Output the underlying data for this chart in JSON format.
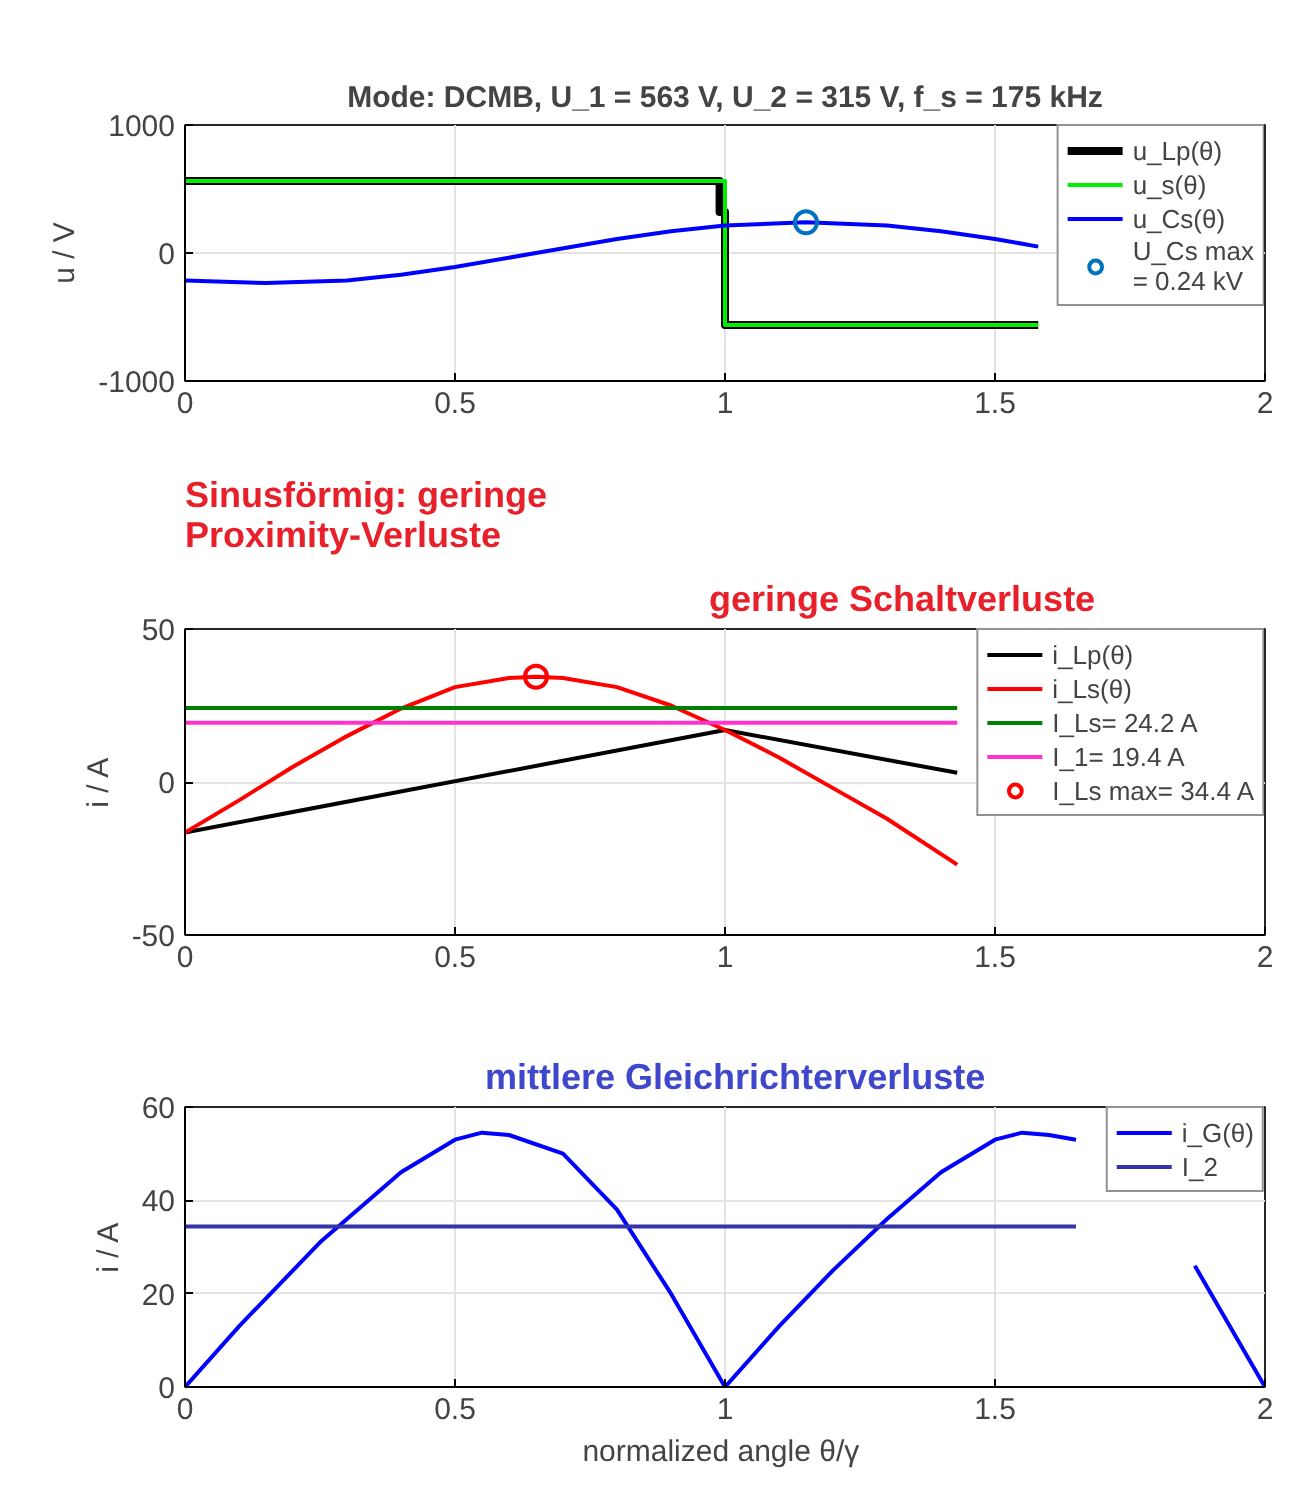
{
  "chart_data": [
    {
      "type": "line",
      "title": "Mode: DCMB, U_1 = 563 V, U_2 = 315 V, f_s = 175 kHz",
      "ylabel": "u / V",
      "xlim": [
        0,
        2
      ],
      "xticks": [
        0,
        0.5,
        1,
        1.5,
        2
      ],
      "ylim": [
        -1000,
        1000
      ],
      "yticks": [
        -1000,
        0,
        1000
      ],
      "grid": true,
      "legend": "top right",
      "series": [
        {
          "name": "u_Lp(θ)",
          "color": "#000000",
          "x": [
            0,
            0.99,
            0.99,
            1.0,
            1.0,
            1.58
          ],
          "values": [
            563,
            563,
            320,
            320,
            -563,
            -563
          ]
        },
        {
          "name": "u_s(θ)",
          "color": "#00ee00",
          "x": [
            0,
            1.0,
            1.0,
            1.58
          ],
          "values": [
            563,
            563,
            -563,
            -563
          ]
        },
        {
          "name": "u_Cs(θ)",
          "color": "#0000ff",
          "x": [
            0,
            0.15,
            0.3,
            0.4,
            0.5,
            0.65,
            0.8,
            0.9,
            1.0,
            1.15,
            1.3,
            1.4,
            1.5,
            1.58
          ],
          "values": [
            -215,
            -235,
            -215,
            -170,
            -110,
            0,
            110,
            170,
            215,
            240,
            215,
            170,
            110,
            50
          ]
        },
        {
          "name": "U_Cs max\n= 0.24 kV",
          "type": "scatter",
          "color": "#0072bd",
          "x": [
            1.15
          ],
          "values": [
            240
          ]
        }
      ]
    },
    {
      "type": "line",
      "ylabel": "i / A",
      "xlim": [
        0,
        2
      ],
      "xticks": [
        0,
        0.5,
        1,
        1.5,
        2
      ],
      "ylim": [
        -50,
        50
      ],
      "yticks": [
        -50,
        0,
        50
      ],
      "grid": true,
      "legend": "top right",
      "annotations": [
        "Sinusförmig: geringe\nProximity-Verluste",
        "geringe Schaltverluste"
      ],
      "series": [
        {
          "name": "i_Lp(θ)",
          "color": "#000000",
          "x": [
            0,
            1.0,
            1.43
          ],
          "values": [
            -16.5,
            17,
            3
          ]
        },
        {
          "name": "i_Ls(θ)",
          "color": "#ff0000",
          "x": [
            0,
            0.1,
            0.2,
            0.3,
            0.4,
            0.5,
            0.6,
            0.65,
            0.7,
            0.8,
            0.9,
            1.0,
            1.1,
            1.2,
            1.3,
            1.43
          ],
          "values": [
            -16.5,
            -6,
            5,
            15,
            24,
            31,
            34,
            34.4,
            34,
            31,
            25,
            17,
            8,
            -2,
            -12,
            -27
          ]
        },
        {
          "name": "I_Ls= 24.2 A",
          "color": "#008000",
          "x": [
            0,
            1.43
          ],
          "values": [
            24.2,
            24.2
          ]
        },
        {
          "name": "I_1= 19.4 A",
          "color": "#ff33cc",
          "x": [
            0,
            1.43
          ],
          "values": [
            19.4,
            19.4
          ]
        },
        {
          "name": "I_Ls max= 34.4 A",
          "type": "scatter",
          "color": "#ff0000",
          "x": [
            0.65
          ],
          "values": [
            34.4
          ]
        }
      ]
    },
    {
      "type": "line",
      "xlabel": "normalized angle  θ/γ",
      "ylabel": "i / A",
      "xlim": [
        0,
        2
      ],
      "xticks": [
        0,
        0.5,
        1,
        1.5,
        2
      ],
      "ylim": [
        0,
        60
      ],
      "yticks": [
        0,
        20,
        40,
        60
      ],
      "grid": true,
      "legend": "top right",
      "annotations": [
        "mittlere Gleichrichterverluste"
      ],
      "series": [
        {
          "name": "i_G(θ)",
          "color": "#0000ff",
          "x": [
            0,
            0.1,
            0.2,
            0.25,
            0.3,
            0.4,
            0.5,
            0.55,
            0.6,
            0.7,
            0.8,
            0.9,
            1.0,
            1.1,
            1.2,
            1.3,
            1.4,
            1.5,
            1.55,
            1.6,
            1.65,
            1.75,
            1.87,
            1.9,
            2.0
          ],
          "values": [
            0,
            13,
            25,
            31,
            36,
            46,
            53,
            54.5,
            54,
            50,
            38,
            20,
            0,
            13,
            25,
            36,
            46,
            53,
            54.5,
            54,
            53,
            null,
            26,
            20,
            0
          ]
        },
        {
          "name": "I_2",
          "color": "#3333aa",
          "x": [
            0,
            1.65
          ],
          "values": [
            34.4,
            34.4
          ]
        }
      ]
    }
  ]
}
